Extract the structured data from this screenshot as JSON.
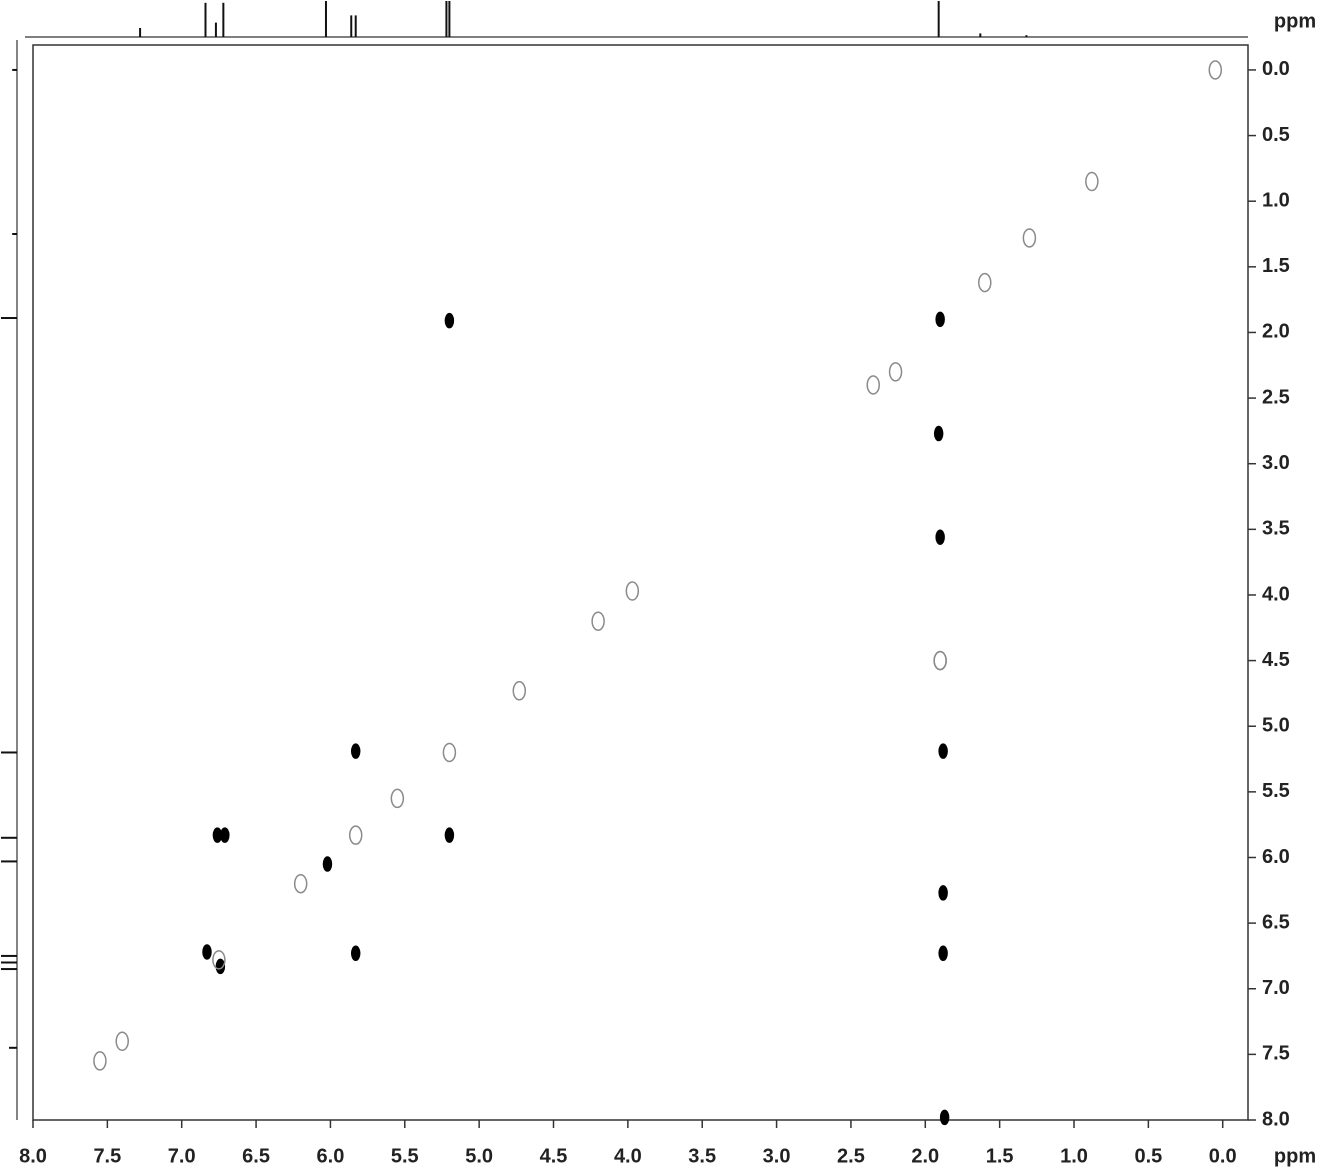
{
  "chart_data": {
    "type": "scatter",
    "xlabel": "ppm",
    "ylabel": "ppm",
    "xlim": [
      8.0,
      -0.17
    ],
    "ylim": [
      -0.19,
      8.0
    ],
    "xticks": [
      {
        "value": 8,
        "label": "8.0"
      },
      {
        "value": 7.5,
        "label": "7.5"
      },
      {
        "value": 7,
        "label": "7.0"
      },
      {
        "value": 6.5,
        "label": "6.5"
      },
      {
        "value": 6,
        "label": "6.0"
      },
      {
        "value": 5.5,
        "label": "5.5"
      },
      {
        "value": 5,
        "label": "5.0"
      },
      {
        "value": 4.5,
        "label": "4.5"
      },
      {
        "value": 4,
        "label": "4.0"
      },
      {
        "value": 3.5,
        "label": "3.5"
      },
      {
        "value": 3,
        "label": "3.0"
      },
      {
        "value": 2.5,
        "label": "2.5"
      },
      {
        "value": 2,
        "label": "2.0"
      },
      {
        "value": 1.5,
        "label": "1.5"
      },
      {
        "value": 1,
        "label": "1.0"
      },
      {
        "value": 0.5,
        "label": "0.5"
      },
      {
        "value": 0,
        "label": "0.0"
      }
    ],
    "yticks": [
      {
        "value": 0,
        "label": "0.0"
      },
      {
        "value": 0.5,
        "label": "0.5"
      },
      {
        "value": 1,
        "label": "1.0"
      },
      {
        "value": 1.5,
        "label": "1.5"
      },
      {
        "value": 2,
        "label": "2.0"
      },
      {
        "value": 2.5,
        "label": "2.5"
      },
      {
        "value": 3,
        "label": "3.0"
      },
      {
        "value": 3.5,
        "label": "3.5"
      },
      {
        "value": 4,
        "label": "4.0"
      },
      {
        "value": 4.5,
        "label": "4.5"
      },
      {
        "value": 5,
        "label": "5.0"
      },
      {
        "value": 5.5,
        "label": "5.5"
      },
      {
        "value": 6,
        "label": "6.0"
      },
      {
        "value": 6.5,
        "label": "6.5"
      },
      {
        "value": 7,
        "label": "7.0"
      },
      {
        "value": 7.5,
        "label": "7.5"
      },
      {
        "value": 8,
        "label": "8.0"
      }
    ],
    "series": [
      {
        "color": "#000000",
        "x": [
          5.2,
          1.9,
          1.91,
          1.9,
          1.88,
          1.88,
          1.88,
          1.87,
          5.83,
          6.76,
          6.71,
          5.2,
          5.83,
          6.83,
          6.74,
          6.02
        ],
        "values": [
          1.91,
          1.9,
          2.77,
          3.56,
          5.19,
          6.27,
          6.73,
          7.98,
          5.19,
          5.83,
          5.83,
          5.83,
          6.73,
          6.72,
          6.83,
          6.05
        ]
      },
      {
        "color": "#8a8a8a",
        "x": [
          0.05,
          0.88,
          1.3,
          1.6,
          2.2,
          2.35,
          1.9,
          4.2,
          3.97,
          4.73,
          5.2,
          5.55,
          5.83,
          6.2,
          6.75,
          7.4,
          1.9,
          7.55
        ],
        "values": [
          0.0,
          0.85,
          1.28,
          1.62,
          2.3,
          2.4,
          4.5,
          4.2,
          3.97,
          4.73,
          5.2,
          5.55,
          5.83,
          6.2,
          6.78,
          7.4,
          4.5,
          7.55
        ]
      }
    ],
    "projection_x": {
      "x": [
        7.28,
        6.84,
        6.77,
        6.72,
        6.03,
        5.86,
        5.83,
        5.22,
        5.2,
        1.91,
        1.63,
        1.32
      ],
      "values": [
        0.25,
        0.95,
        0.4,
        0.95,
        1,
        0.6,
        0.6,
        1,
        1,
        1,
        0.1,
        0.05
      ]
    },
    "projection_y": {
      "x": [
        0.0,
        1.25,
        1.89,
        5.2,
        5.85,
        6.03,
        6.75,
        6.8,
        6.85,
        7.45
      ],
      "values": [
        0.3,
        0.3,
        1,
        1,
        1,
        1,
        1,
        1,
        1,
        0.5
      ]
    }
  }
}
